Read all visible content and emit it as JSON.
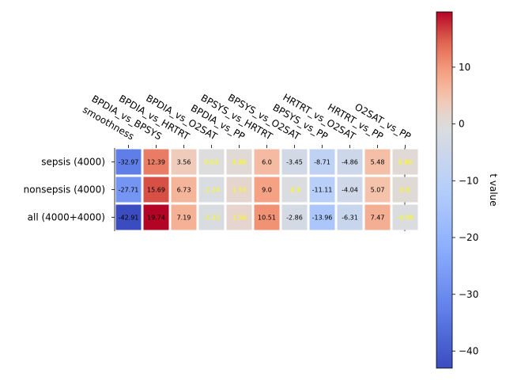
{
  "chart_data": {
    "type": "heatmap",
    "title": "",
    "rows": [
      "sepsis (4000)",
      "nonsepsis (4000)",
      "all (4000+4000)"
    ],
    "columns": [
      "smoothness",
      "BPDIA_vs_BPSYS",
      "BPDIA_vs_HRTRT",
      "BPDIA_vs_O2SAT",
      "BPDIA_vs_PP",
      "BPSYS_vs_HRTRT",
      "BPSYS_vs_O2SAT",
      "BPSYS_vs_PP",
      "HRTRT_vs_O2SAT",
      "HRTRT_vs_PP",
      "O2SAT_vs_PP"
    ],
    "values": [
      [
        -32.97,
        12.39,
        3.56,
        0.03,
        0.86,
        6.0,
        -3.45,
        -8.71,
        -4.86,
        5.48,
        0.86
      ],
      [
        -27.71,
        15.69,
        6.73,
        -1.24,
        1.53,
        9.0,
        -0.6,
        -11.11,
        -4.04,
        5.07,
        0.6
      ],
      [
        -42.91,
        19.74,
        7.19,
        -1.33,
        1.58,
        10.51,
        -2.86,
        -13.96,
        -6.31,
        7.47,
        -0.89
      ]
    ],
    "labels": [
      [
        "-32.97",
        "12.39",
        "3.56",
        "0.03",
        "0.86",
        "6.0",
        "-3.45",
        "-8.71",
        "-4.86",
        "5.48",
        "0.86"
      ],
      [
        "-27.71",
        "15.69",
        "6.73",
        "-1.24",
        "1.53",
        "9.0",
        "-0.6",
        "-11.11",
        "-4.04",
        "5.07",
        "0.6"
      ],
      [
        "-42.91",
        "19.74",
        "7.19",
        "-1.33",
        "1.58",
        "10.51",
        "-2.86",
        "-13.96",
        "-6.31",
        "7.47",
        "-0.89"
      ]
    ],
    "colormap": "coolwarm",
    "vmin": -43,
    "vmax": 19.74,
    "colorbar": {
      "label": "t value",
      "ticks": [
        10,
        0,
        -10,
        -20,
        -30,
        -40
      ]
    },
    "insignificant_label_color": "#ffff00",
    "significant_label_color": "#000000",
    "column_label_rotation": "-30deg",
    "legend": "colorbar-right"
  }
}
